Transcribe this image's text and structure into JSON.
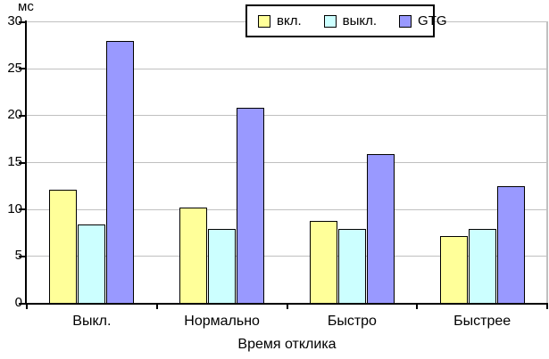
{
  "chart_data": {
    "type": "bar",
    "title": "",
    "unit_label": "мс",
    "xlabel": "Время отклика",
    "ylabel": "мс",
    "categories": [
      "Выкл.",
      "Нормально",
      "Быстро",
      "Быстрее"
    ],
    "series": [
      {
        "name": "вкл.",
        "color": "#FFFF99",
        "values": [
          12.1,
          10.2,
          8.7,
          7.1
        ]
      },
      {
        "name": "выкл.",
        "color": "#CCFFFF",
        "values": [
          8.4,
          7.9,
          7.9,
          7.9
        ]
      },
      {
        "name": "GTG",
        "color": "#9999FF",
        "values": [
          27.9,
          20.8,
          15.9,
          12.4
        ]
      }
    ],
    "ylim": [
      0,
      30
    ],
    "ytick_step": 5,
    "ytick_labels": [
      "0",
      "5",
      "10",
      "15",
      "20",
      "25",
      "30"
    ],
    "grid": true,
    "legend_position": "top-center",
    "colors": {
      "gridline": "#C0C0C0",
      "axis": "#000000",
      "bar_border": "#000000",
      "background": "#FFFFFF"
    }
  }
}
